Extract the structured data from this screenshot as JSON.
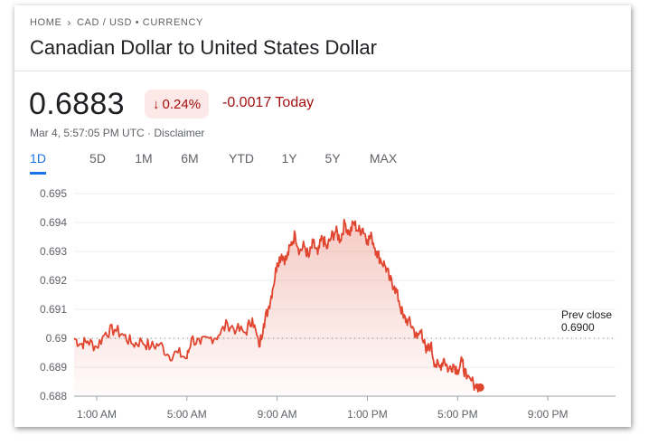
{
  "breadcrumb": {
    "home": "HOME",
    "path": "CAD / USD • CURRENCY"
  },
  "title": "Canadian Dollar to United States Dollar",
  "quote": {
    "price": "0.6883",
    "change_percent": "0.24%",
    "change_direction_icon": "arrow-down-icon",
    "change_abs": "-0.0017 Today",
    "timestamp": "Mar 4, 5:57:05 PM UTC · Disclaimer"
  },
  "tabs": [
    {
      "label": "1D",
      "active": true
    },
    {
      "label": "5D"
    },
    {
      "label": "1M"
    },
    {
      "label": "6M"
    },
    {
      "label": "YTD"
    },
    {
      "label": "1Y"
    },
    {
      "label": "5Y"
    },
    {
      "label": "MAX"
    }
  ],
  "colors": {
    "line": "#e0452f",
    "negative": "#a50e0e",
    "badge_bg": "#fce8e6",
    "active_tab": "#1a73e8"
  },
  "chart_data": {
    "type": "area",
    "title": "",
    "xlabel": "",
    "ylabel": "",
    "ylim": [
      0.688,
      0.695
    ],
    "xlim_hours": [
      0,
      24
    ],
    "yticks": [
      0.695,
      0.694,
      0.693,
      0.692,
      0.691,
      0.69,
      0.689,
      0.688
    ],
    "ytick_labels": [
      "0.695",
      "0.694",
      "0.693",
      "0.692",
      "0.691",
      "0.69",
      "0.689",
      "0.688"
    ],
    "xticks_hours": [
      1,
      5,
      9,
      13,
      17,
      21
    ],
    "xtick_labels": [
      "1:00 AM",
      "5:00 AM",
      "9:00 AM",
      "1:00 PM",
      "5:00 PM",
      "9:00 PM"
    ],
    "grid": true,
    "prev_close": 0.69,
    "prev_close_label": "Prev close",
    "prev_close_value": "0.6900",
    "series": [
      {
        "x_hours": [
          0.0,
          0.3,
          0.6,
          1.0,
          1.4,
          1.8,
          2.2,
          2.6,
          3.0,
          3.4,
          3.8,
          4.2,
          4.6,
          5.0,
          5.2,
          5.6,
          6.0,
          6.4,
          6.8,
          7.2,
          7.6,
          7.9,
          8.2,
          8.4,
          8.6,
          8.8,
          9.0,
          9.2,
          9.4,
          9.6,
          9.8,
          10.0,
          10.2,
          10.4,
          10.6,
          10.8,
          11.0,
          11.2,
          11.4,
          11.6,
          11.8,
          12.0,
          12.2,
          12.4,
          12.6,
          12.8,
          13.0,
          13.2,
          13.4,
          13.6,
          13.8,
          14.0,
          14.2,
          14.4,
          14.6,
          14.8,
          15.0,
          15.2,
          15.4,
          15.6,
          15.8,
          16.0,
          16.2,
          16.4,
          16.6,
          16.8,
          17.0,
          17.2,
          17.4,
          17.8,
          18.0
        ],
        "y": [
          0.69,
          0.6898,
          0.6899,
          0.6897,
          0.6902,
          0.6903,
          0.6901,
          0.6898,
          0.6899,
          0.6897,
          0.6898,
          0.6894,
          0.6895,
          0.6893,
          0.69,
          0.6898,
          0.69,
          0.6901,
          0.6905,
          0.6903,
          0.6902,
          0.6907,
          0.6897,
          0.6905,
          0.691,
          0.6917,
          0.6926,
          0.6929,
          0.6927,
          0.6932,
          0.6936,
          0.693,
          0.6932,
          0.6928,
          0.6933,
          0.6929,
          0.6935,
          0.6931,
          0.6935,
          0.6937,
          0.6934,
          0.694,
          0.6936,
          0.694,
          0.6937,
          0.6938,
          0.6934,
          0.6935,
          0.693,
          0.6927,
          0.6925,
          0.692,
          0.6918,
          0.6913,
          0.6907,
          0.6906,
          0.6904,
          0.69,
          0.6903,
          0.6895,
          0.6898,
          0.6891,
          0.689,
          0.6893,
          0.6889,
          0.6891,
          0.6889,
          0.6892,
          0.6886,
          0.6884,
          0.6883
        ]
      }
    ]
  }
}
